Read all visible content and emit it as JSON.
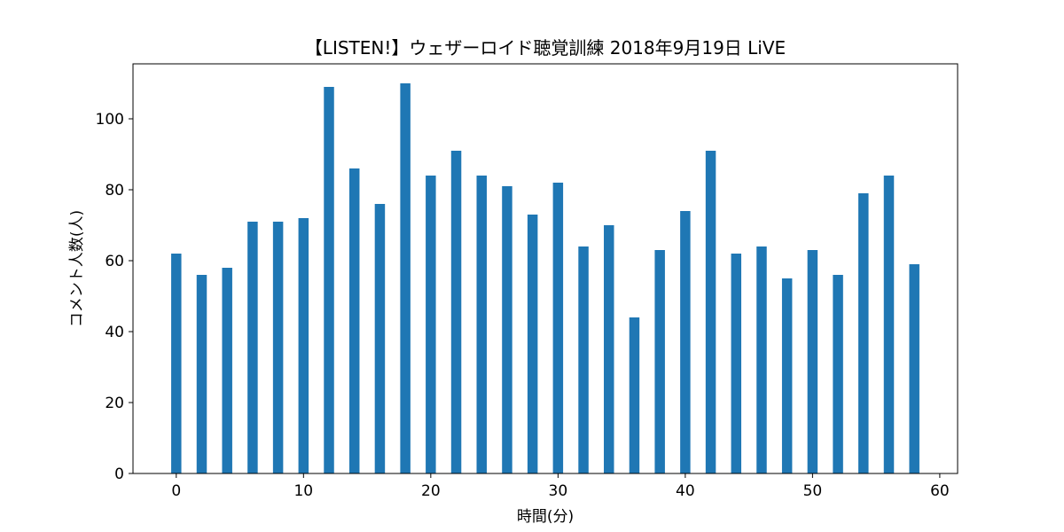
{
  "chart_data": {
    "type": "bar",
    "title": "【LISTEN!】ウェザーロイド聴覚訓練 2018年9月19日 LiVE",
    "xlabel": "時間(分)",
    "ylabel": "コメント人数(人)",
    "x": [
      0,
      2,
      4,
      6,
      8,
      10,
      12,
      14,
      16,
      18,
      20,
      22,
      24,
      26,
      28,
      30,
      32,
      34,
      36,
      38,
      40,
      42,
      44,
      46,
      48,
      50,
      52,
      54,
      56,
      58
    ],
    "values": [
      62,
      56,
      58,
      71,
      71,
      72,
      109,
      86,
      76,
      110,
      84,
      91,
      84,
      81,
      73,
      82,
      64,
      70,
      44,
      63,
      74,
      91,
      62,
      64,
      55,
      63,
      56,
      79,
      84,
      59
    ],
    "xlim": [
      -3.4,
      61.4
    ],
    "ylim": [
      0,
      115.5
    ],
    "xticks": [
      0,
      10,
      20,
      30,
      40,
      50,
      60
    ],
    "yticks": [
      0,
      20,
      40,
      60,
      80,
      100
    ],
    "bar_width": 0.8,
    "color": "#1f77b4",
    "grid": false,
    "legend": false
  }
}
